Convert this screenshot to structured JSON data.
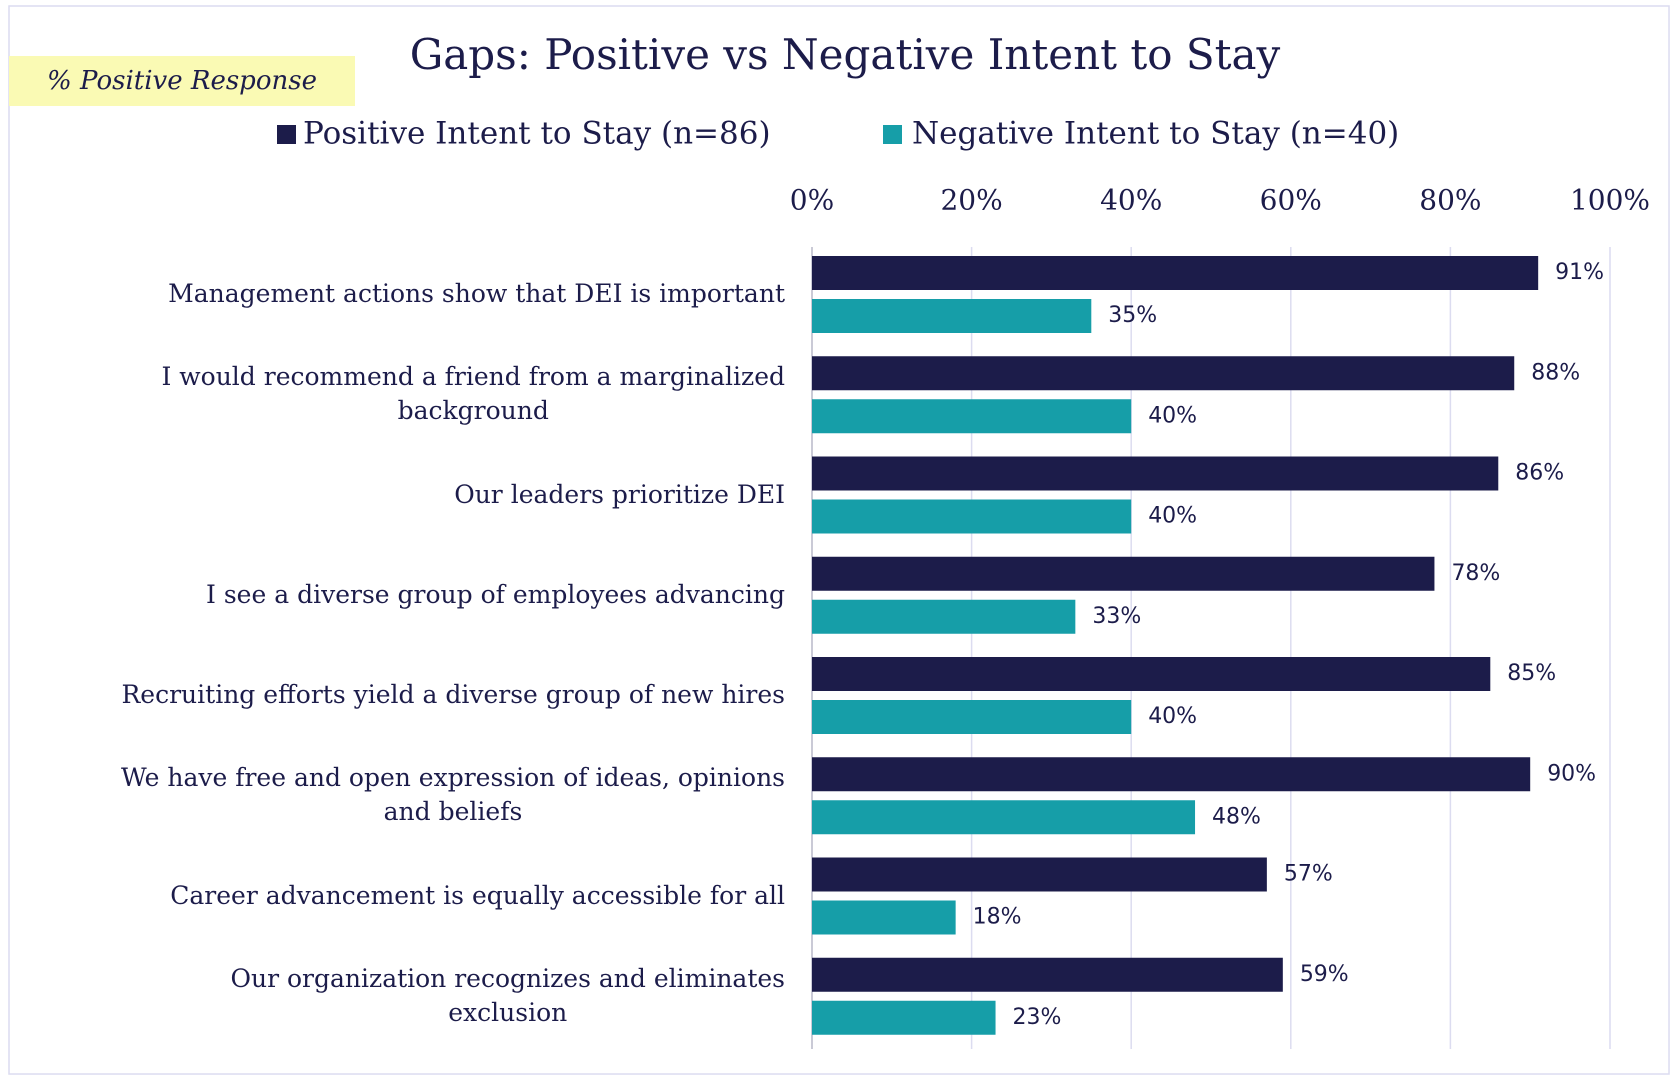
{
  "chart_data": {
    "type": "hbar",
    "title": "Gaps: Positive vs Negative Intent to Stay",
    "annotation": "% Positive Response",
    "categories": [
      "Management actions show that DEI is important",
      "I would recommend a friend from a marginalized\nbackground",
      "Our leaders prioritize DEI",
      "I see a diverse group of employees advancing",
      "Recruiting efforts yield a diverse group of new hires",
      "We have free and open expression of ideas, opinions\nand beliefs",
      "Career advancement is equally accessible for all",
      "Our organization recognizes and eliminates\nexclusion"
    ],
    "series": [
      {
        "name": "Positive Intent to Stay (n=86)",
        "color": "#1c1c4a",
        "values": [
          91,
          88,
          86,
          78,
          85,
          90,
          57,
          59
        ],
        "value_labels": [
          "91%",
          "88%",
          "86%",
          "78%",
          "85%",
          "90%",
          "57%",
          "59%"
        ]
      },
      {
        "name": "Negative Intent to Stay (n=40)",
        "color": "#169ea8",
        "values": [
          35,
          40,
          40,
          33,
          40,
          48,
          18,
          23
        ],
        "value_labels": [
          "35%",
          "40%",
          "40%",
          "33%",
          "40%",
          "48%",
          "18%",
          "23%"
        ]
      }
    ],
    "xlim": [
      0,
      100
    ],
    "xticks": [
      {
        "value": 0,
        "label": "0%"
      },
      {
        "value": 20,
        "label": "20%"
      },
      {
        "value": 40,
        "label": "40%"
      },
      {
        "value": 60,
        "label": "60%"
      },
      {
        "value": 80,
        "label": "80%"
      },
      {
        "value": 100,
        "label": "100%"
      }
    ],
    "grid": true,
    "legend": "top"
  }
}
